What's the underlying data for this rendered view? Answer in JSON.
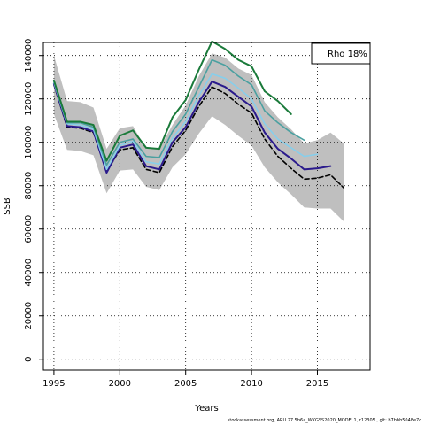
{
  "chart_data": {
    "type": "line",
    "xlabel": "Years",
    "ylabel": "SSB",
    "xlim": [
      1994.2,
      2019
    ],
    "ylim": [
      -5000,
      146000
    ],
    "x_ticks": [
      1995,
      2000,
      2005,
      2010,
      2015
    ],
    "y_ticks": [
      0,
      20000,
      40000,
      60000,
      80000,
      100000,
      120000,
      140000
    ],
    "grid": true,
    "legend_text": "Rho 18%",
    "legend_position": "top-right",
    "confidence_band": {
      "x": [
        1995,
        1996,
        1997,
        1998,
        1999,
        2000,
        2001,
        2002,
        2003,
        2004,
        2005,
        2006,
        2007,
        2008,
        2009,
        2010,
        2011,
        2012,
        2013,
        2014,
        2015,
        2016,
        2017
      ],
      "upper": [
        140000,
        119000,
        118500,
        116000,
        97000,
        106500,
        107500,
        97000,
        97000,
        108000,
        117000,
        130500,
        141000,
        139000,
        134000,
        131000,
        118500,
        111500,
        106000,
        99500,
        101000,
        104500,
        99500
      ],
      "lower": [
        113000,
        96500,
        96000,
        94000,
        76500,
        87000,
        87500,
        79500,
        78000,
        88500,
        94500,
        104000,
        112000,
        108000,
        103000,
        98500,
        88500,
        81500,
        76000,
        70000,
        69500,
        69500,
        63500
      ],
      "color": "#bfbfbf"
    },
    "series": [
      {
        "color": "#000000",
        "dashed": true,
        "width": 1.6,
        "x": [
          1995,
          1996,
          1997,
          1998,
          1999,
          2000,
          2001,
          2002,
          2003,
          2004,
          2005,
          2006,
          2007,
          2008,
          2009,
          2010,
          2011,
          2012,
          2013,
          2014,
          2015,
          2016,
          2017
        ],
        "values": [
          126500,
          107000,
          106500,
          104500,
          86500,
          96500,
          97500,
          87500,
          86000,
          98000,
          105500,
          116500,
          125500,
          122500,
          117500,
          113500,
          101500,
          93500,
          88000,
          83000,
          83500,
          85000,
          79000
        ]
      },
      {
        "color": "#2a1a8c",
        "width": 2.0,
        "x": [
          1995,
          1996,
          1997,
          1998,
          1999,
          2000,
          2001,
          2002,
          2003,
          2004,
          2005,
          2006,
          2007,
          2008,
          2009,
          2010,
          2011,
          2012,
          2013,
          2014,
          2015,
          2016
        ],
        "values": [
          127000,
          107500,
          107000,
          105000,
          86000,
          97500,
          99000,
          89000,
          87500,
          100000,
          107000,
          118500,
          128000,
          125500,
          121000,
          116500,
          104500,
          97000,
          92500,
          87500,
          88000,
          89000
        ]
      },
      {
        "color": "#87ceeb",
        "width": 1.6,
        "x": [
          1995,
          1996,
          1997,
          1998,
          1999,
          2000,
          2001,
          2002,
          2003,
          2004,
          2005,
          2006,
          2007,
          2008,
          2009,
          2010,
          2011,
          2012,
          2013,
          2014,
          2015
        ],
        "values": [
          127500,
          108500,
          108000,
          106000,
          87500,
          98500,
          100500,
          91000,
          90000,
          102000,
          109500,
          121500,
          131500,
          129500,
          125000,
          120000,
          108500,
          101500,
          97500,
          93500,
          94500
        ]
      },
      {
        "color": "#4aa0a0",
        "width": 1.6,
        "x": [
          1995,
          1996,
          1997,
          1998,
          1999,
          2000,
          2001,
          2002,
          2003,
          2004,
          2005,
          2006,
          2007,
          2008,
          2009,
          2010,
          2011,
          2012,
          2013,
          2014
        ],
        "values": [
          128000,
          109000,
          109000,
          107000,
          89500,
          100000,
          101500,
          93500,
          93000,
          105000,
          113000,
          125500,
          138000,
          135500,
          130500,
          126500,
          114500,
          109000,
          104500,
          101000
        ]
      },
      {
        "color": "#1a7a3a",
        "width": 2.0,
        "x": [
          1995,
          1996,
          1997,
          1998,
          1999,
          2000,
          2001,
          2002,
          2003,
          2004,
          2005,
          2006,
          2007,
          2008,
          2009,
          2010,
          2011,
          2012,
          2013
        ],
        "values": [
          128500,
          109500,
          109500,
          108000,
          91500,
          103000,
          105500,
          97500,
          97000,
          111500,
          119500,
          133500,
          146500,
          143000,
          138000,
          135000,
          123500,
          119000,
          113000
        ]
      }
    ]
  },
  "footer_text": "stockassessment.org,  ARU.27.5b6a_WKGSS2020_MODEL1,  r12305 ,  git: b7bbb5048e7c"
}
